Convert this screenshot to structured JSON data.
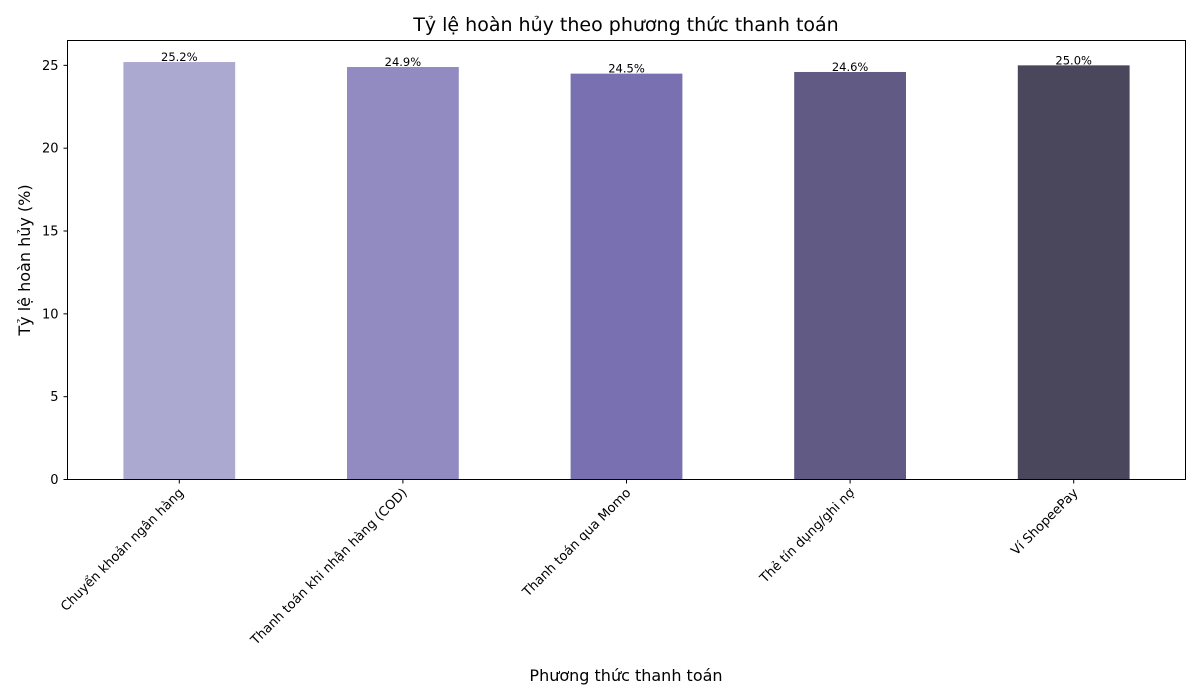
{
  "chart_data": {
    "type": "bar",
    "title": "Tỷ lệ hoàn hủy theo phương thức thanh toán",
    "xlabel": "Phương thức thanh toán",
    "ylabel": "Tỷ lệ hoàn hủy (%)",
    "categories": [
      "Chuyển khoản ngân hàng",
      "Thanh toán khi nhận hàng (COD)",
      "Thanh toán qua Momo",
      "Thẻ tín dụng/ghi nợ",
      "Ví ShopeePay"
    ],
    "values": [
      25.2,
      24.9,
      24.5,
      24.6,
      25.0
    ],
    "value_labels": [
      "25.2%",
      "24.9%",
      "24.5%",
      "24.6%",
      "25.0%"
    ],
    "colors": [
      "#ACA9D0",
      "#928BC2",
      "#7870B0",
      "#605A85",
      "#4A475C"
    ],
    "ylim": [
      0,
      26.5
    ],
    "yticks": [
      0,
      5,
      10,
      15,
      20,
      25
    ],
    "grid": false,
    "legend": "none"
  }
}
